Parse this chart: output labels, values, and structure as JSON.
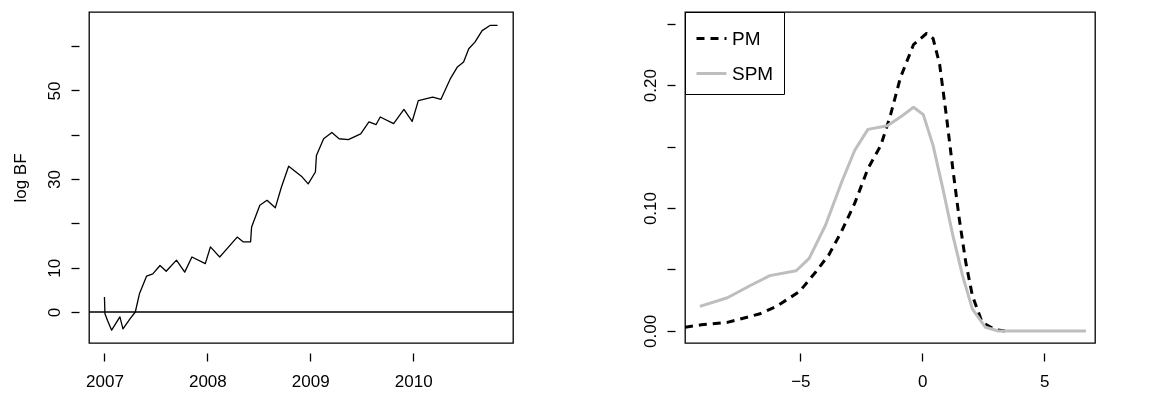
{
  "chart_data": [
    {
      "type": "line",
      "ylabel": "log BF",
      "color": "#000000",
      "grid": false,
      "x": [
        2007.0,
        2007.005,
        2007.03,
        2007.07,
        2007.15,
        2007.18,
        2007.25,
        2007.3,
        2007.34,
        2007.41,
        2007.47,
        2007.54,
        2007.6,
        2007.7,
        2007.78,
        2007.85,
        2007.98,
        2008.03,
        2008.12,
        2008.29,
        2008.35,
        2008.42,
        2008.43,
        2008.51,
        2008.58,
        2008.66,
        2008.72,
        2008.79,
        2008.92,
        2008.98,
        2009.05,
        2009.06,
        2009.13,
        2009.21,
        2009.28,
        2009.37,
        2009.49,
        2009.57,
        2009.64,
        2009.68,
        2009.81,
        2009.91,
        2009.99,
        2010.05,
        2010.19,
        2010.27,
        2010.36,
        2010.43,
        2010.49,
        2010.54,
        2010.6,
        2010.67,
        2010.75,
        2010.82
      ],
      "values": [
        3.4,
        -0.4,
        -1.9,
        -4.1,
        -1.1,
        -3.8,
        -1.5,
        0,
        4.1,
        8.1,
        8.6,
        10.5,
        9.2,
        11.7,
        9.0,
        12.4,
        10.9,
        14.7,
        12.4,
        16.9,
        15.8,
        15.8,
        19.2,
        24.1,
        25.2,
        23.5,
        28.2,
        32.9,
        30.5,
        28.9,
        31.6,
        35.3,
        39.1,
        40.5,
        39.1,
        38.9,
        40.2,
        42.9,
        42.3,
        44.0,
        42.5,
        45.7,
        43.0,
        47.7,
        48.5,
        48.0,
        52.6,
        55.3,
        56.4,
        59.4,
        60.9,
        63.5,
        64.7,
        64.7
      ],
      "xlim": [
        2006.85,
        2010.97
      ],
      "xticks": [
        2007,
        2008,
        2009,
        2010
      ],
      "ylim": [
        -7,
        67.7
      ],
      "yticks": [
        0,
        10,
        {
          "value": 20,
          "label": null
        },
        30,
        {
          "value": 40,
          "label": null
        },
        50,
        {
          "value": 60,
          "label": null
        }
      ],
      "ref_lines": [
        {
          "axis": "y",
          "value": 0
        }
      ]
    },
    {
      "type": "line",
      "legend": "top left",
      "grid": false,
      "series": [
        {
          "name": "PM",
          "color": "#000000",
          "line_style": "dashed",
          "x": [
            -9.73,
            -9.06,
            -7.99,
            -6.65,
            -5.98,
            -5.04,
            -4.37,
            -3.83,
            -3.31,
            -2.77,
            -2.23,
            -1.7,
            -1.3,
            -0.9,
            -0.36,
            0.17,
            0.44,
            0.71,
            0.98,
            1.25,
            1.51,
            1.78,
            2.05,
            2.45,
            2.99,
            3.39
          ],
          "values": [
            0.003,
            0.005,
            0.007,
            0.014,
            0.02,
            0.032,
            0.048,
            0.062,
            0.081,
            0.104,
            0.132,
            0.151,
            0.176,
            0.206,
            0.233,
            0.242,
            0.238,
            0.217,
            0.176,
            0.132,
            0.092,
            0.056,
            0.029,
            0.007,
            0.001,
            0
          ]
        },
        {
          "name": "SPM",
          "color": "#bebebe",
          "line_style": "solid",
          "x": [
            -9.12,
            -7.99,
            -7.05,
            -6.25,
            -5.17,
            -4.64,
            -3.97,
            -3.31,
            -2.77,
            -2.23,
            -1.43,
            -0.9,
            -0.36,
            0.04,
            0.44,
            0.84,
            1.25,
            1.65,
            2.05,
            2.59,
            3.12,
            6.71
          ],
          "values": [
            0.02,
            0.027,
            0.037,
            0.045,
            0.049,
            0.059,
            0.086,
            0.121,
            0.147,
            0.164,
            0.167,
            0.174,
            0.182,
            0.176,
            0.151,
            0.116,
            0.078,
            0.045,
            0.018,
            0.003,
            0,
            0
          ]
        }
      ],
      "xlim": [
        -9.73,
        7.08
      ],
      "xticks": [
        {
          "value": -5,
          "label": "−5"
        },
        0,
        5
      ],
      "ylim": [
        -0.0098,
        0.2595
      ],
      "yticks": [
        {
          "value": 0,
          "label": "0.00"
        },
        {
          "value": 0.05,
          "label": null
        },
        {
          "value": 0.1,
          "label": "0.10"
        },
        {
          "value": 0.15,
          "label": null
        },
        {
          "value": 0.2,
          "label": "0.20"
        },
        {
          "value": 0.25,
          "label": null
        }
      ]
    }
  ]
}
